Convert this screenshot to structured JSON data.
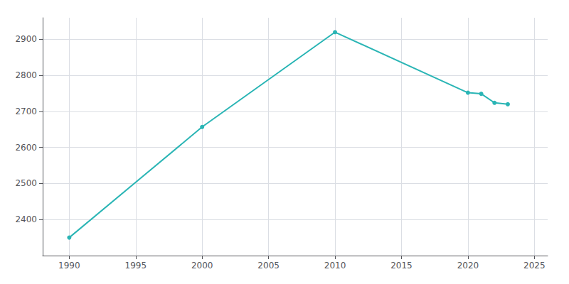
{
  "chart_data": {
    "type": "line",
    "x": [
      1990,
      2000,
      2010,
      2020,
      2021,
      2022,
      2023
    ],
    "values": [
      2350,
      2657,
      2920,
      2752,
      2749,
      2724,
      2720
    ],
    "color": "#2ab5b5",
    "marker": "circle",
    "xlim": [
      1988,
      2026
    ],
    "ylim": [
      2300,
      2960
    ],
    "xticks": [
      1990,
      1995,
      2000,
      2005,
      2010,
      2015,
      2020,
      2025
    ],
    "yticks": [
      2400,
      2500,
      2600,
      2700,
      2800,
      2900
    ],
    "grid": true
  }
}
